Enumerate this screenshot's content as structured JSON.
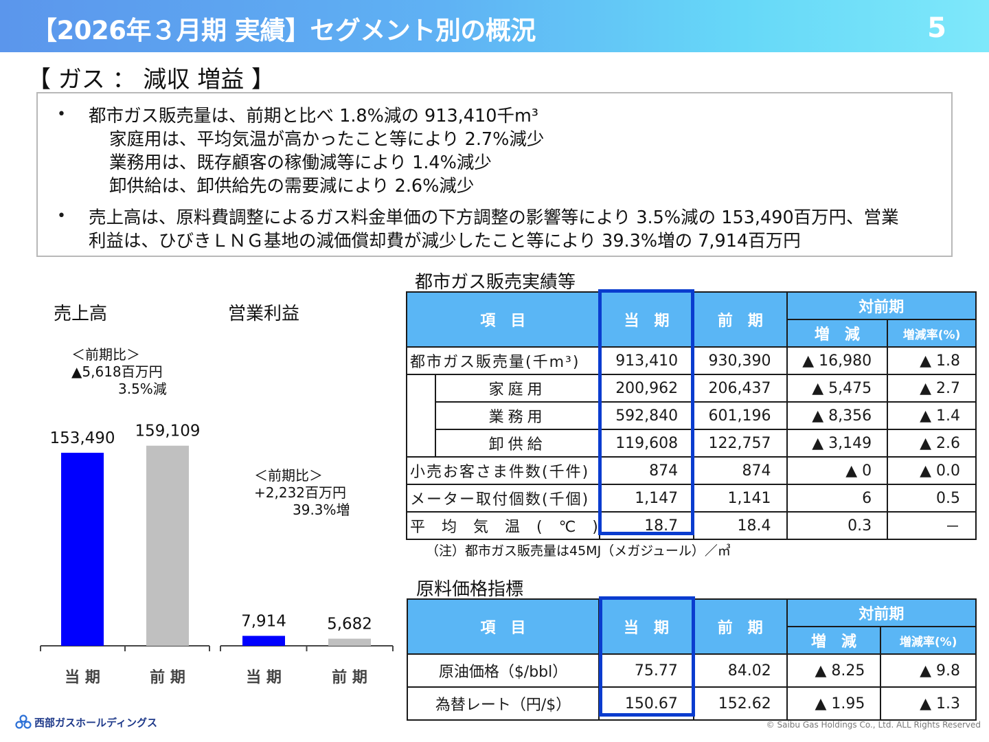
{
  "header": {
    "title": "【2026年３月期 実績】セグメント別の概況",
    "page_number": "5"
  },
  "segment_title": "【 ガス ： 減収 増益 】",
  "summary": {
    "lines": [
      "都市ガス販売量は、前期と比べ 1.8%減の 913,410千m³",
      "家庭用は、平均気温が高かったこと等により 2.7%減少",
      "業務用は、既存顧客の稼働減等により 1.4%減少",
      "卸供給は、卸供給先の需要減により 2.6%減少",
      "売上高は、原料費調整によるガス料金単価の下方調整の影響等により  3.5%減の 153,490百万円、営業",
      "利益は、ひびきＬＮＧ基地の減価償却費が減少したこと等により 39.3%増の 7,914百万円"
    ],
    "bullet": "•"
  },
  "chart_data": [
    {
      "type": "bar",
      "title": "売上高",
      "categories": [
        "当 期",
        "前 期"
      ],
      "values": [
        153490,
        159109
      ],
      "value_labels": [
        "153,490",
        "159,109"
      ],
      "colors": [
        "#0000ff",
        "#c0c0c0"
      ],
      "note": [
        "＜前期比＞",
        "▲5,618百万円",
        "3.5%減"
      ]
    },
    {
      "type": "bar",
      "title": "営業利益",
      "categories": [
        "当 期",
        "前 期"
      ],
      "values": [
        7914,
        5682
      ],
      "value_labels": [
        "7,914",
        "5,682"
      ],
      "colors": [
        "#0000ff",
        "#c0c0c0"
      ],
      "note": [
        "＜前期比＞",
        "+2,232百万円",
        "39.3%増"
      ]
    }
  ],
  "sales_table": {
    "title": "都市ガス販売実績等",
    "headers": {
      "item": "項　目",
      "current": "当　期",
      "previous": "前　期",
      "yoy": "対前期",
      "change": "増　減",
      "rate": "増減率(%)"
    },
    "rows": [
      {
        "label": "都市ガス販売量(千m³)",
        "current": "913,410",
        "previous": "930,390",
        "change": "▲ 16,980",
        "rate": "▲ 1.8"
      },
      {
        "label": "家庭用",
        "current": "200,962",
        "previous": "206,437",
        "change": "▲ 5,475",
        "rate": "▲ 2.7"
      },
      {
        "label": "業務用",
        "current": "592,840",
        "previous": "601,196",
        "change": "▲ 8,356",
        "rate": "▲ 1.4"
      },
      {
        "label": "卸供給",
        "current": "119,608",
        "previous": "122,757",
        "change": "▲ 3,149",
        "rate": "▲ 2.6"
      },
      {
        "label": "小売お客さま件数(千件)",
        "current": "874",
        "previous": "874",
        "change": "▲ 0",
        "rate": "▲ 0.0"
      },
      {
        "label": "メーター取付個数(千個)",
        "current": "1,147",
        "previous": "1,141",
        "change": "6",
        "rate": "0.5"
      },
      {
        "label": "平　均　気　温　(　℃　)",
        "current": "18.7",
        "previous": "18.4",
        "change": "0.3",
        "rate": "－"
      }
    ],
    "footnote": "（注）都市ガス販売量は45MJ（メガジュール）／㎥"
  },
  "price_table": {
    "title": "原料価格指標",
    "headers": {
      "item": "項　目",
      "current": "当　期",
      "previous": "前　期",
      "yoy": "対前期",
      "change": "増　減",
      "rate": "増減率(%)"
    },
    "rows": [
      {
        "label": "原油価格（$/bbl）",
        "current": "75.77",
        "previous": "84.02",
        "change": "▲ 8.25",
        "rate": "▲ 9.8"
      },
      {
        "label": "為替レート（円/$）",
        "current": "150.67",
        "previous": "152.62",
        "change": "▲ 1.95",
        "rate": "▲ 1.3"
      }
    ]
  },
  "footer": {
    "logo_text": "西部ガスホールディングス",
    "copyright": "© Saibu Gas Holdings Co., Ltd. ALL Rights Reserved"
  },
  "colors": {
    "header_start": "#5b96ec",
    "header_end": "#7ee8fa",
    "table_header": "#5ab6f5",
    "highlight": "#0a3ccf",
    "bar_current": "#0000ff",
    "bar_previous": "#c0c0c0"
  }
}
